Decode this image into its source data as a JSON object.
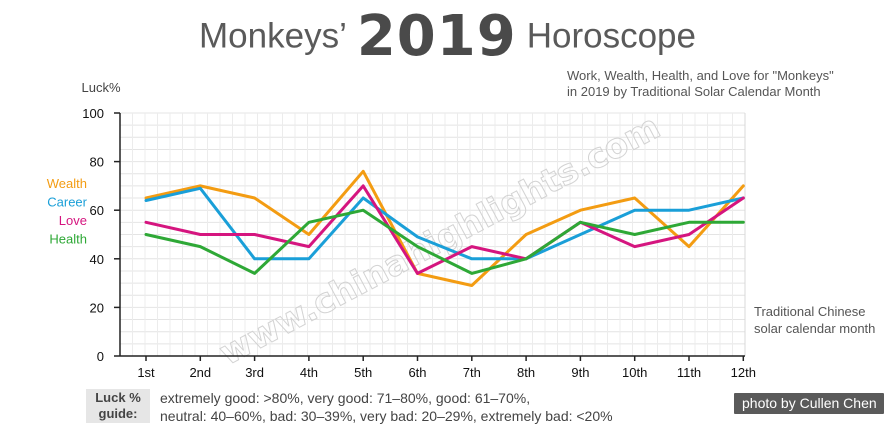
{
  "header": {
    "title_before": "Monkeys’",
    "title_year": "2019",
    "title_after": "Horoscope",
    "subtitle_line1": "Work, Wealth, Health, and Love for \"Monkeys\"",
    "subtitle_line2": "in 2019 by Traditional Solar Calendar Month"
  },
  "watermark": "www.chinahighlights.com",
  "chart_data": {
    "type": "line",
    "ylabel": "Luck%",
    "xlabel_line1": "Traditional Chinese",
    "xlabel_line2": "solar calendar month",
    "ylim": [
      0,
      100
    ],
    "yticks": [
      0,
      20,
      40,
      60,
      80,
      100
    ],
    "categories": [
      "1st",
      "2nd",
      "3rd",
      "4th",
      "5th",
      "6th",
      "7th",
      "8th",
      "9th",
      "10th",
      "11th",
      "12th"
    ],
    "grid": true,
    "series": [
      {
        "name": "Wealth",
        "color": "#f39c12",
        "values": [
          65,
          70,
          65,
          50,
          76,
          34,
          29,
          50,
          60,
          65,
          45,
          70
        ]
      },
      {
        "name": "Career",
        "color": "#1a9fd8",
        "values": [
          64,
          69,
          40,
          40,
          65,
          49,
          40,
          40,
          50,
          60,
          60,
          65
        ]
      },
      {
        "name": "Love",
        "color": "#d5157f",
        "values": [
          55,
          50,
          50,
          45,
          70,
          34,
          45,
          40,
          55,
          45,
          50,
          65
        ]
      },
      {
        "name": "Health",
        "color": "#2ea836",
        "values": [
          50,
          45,
          34,
          55,
          60,
          45,
          34,
          40,
          55,
          50,
          55,
          55
        ]
      }
    ]
  },
  "guide": {
    "label_line1": "Luck %",
    "label_line2": "guide:",
    "line1": "extremely good: >80%, very good: 71–80%, good: 61–70%,",
    "line2": "neutral: 40–60%, bad: 30–39%, very bad: 20–29%, extremely bad: <20%"
  },
  "credit": "photo by Cullen Chen"
}
